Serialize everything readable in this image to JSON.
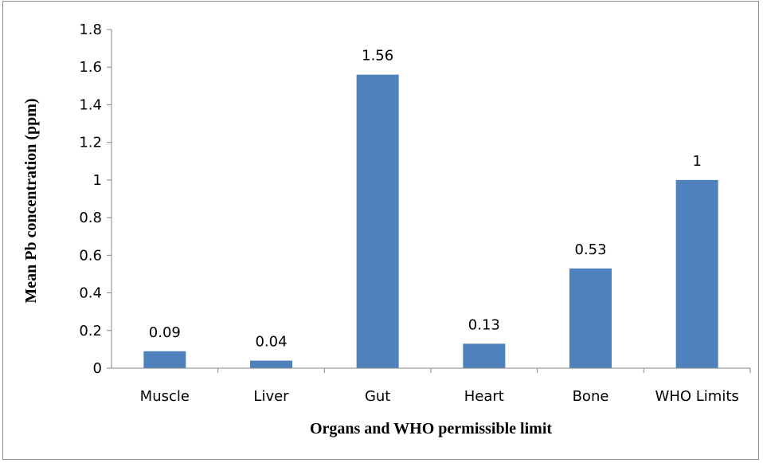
{
  "chart_data": {
    "type": "bar",
    "categories": [
      "Muscle",
      "Liver",
      "Gut",
      "Heart",
      "Bone",
      "WHO Limits"
    ],
    "values": [
      0.09,
      0.04,
      1.56,
      0.13,
      0.53,
      1
    ],
    "data_labels": [
      "0.09",
      "0.04",
      "1.56",
      "0.13",
      "0.53",
      "1"
    ],
    "xlabel": "Organs and WHO permissible limit",
    "ylabel": "Mean Pb concentration (ppm)",
    "ylim": [
      0,
      1.8
    ],
    "yticks": [
      "0",
      "0.2",
      "0.4",
      "0.6",
      "0.8",
      "1",
      "1.2",
      "1.4",
      "1.6",
      "1.8"
    ],
    "grid": false,
    "legend": "none",
    "bar_color": "#4f81bd",
    "axis_color": "#868686"
  }
}
